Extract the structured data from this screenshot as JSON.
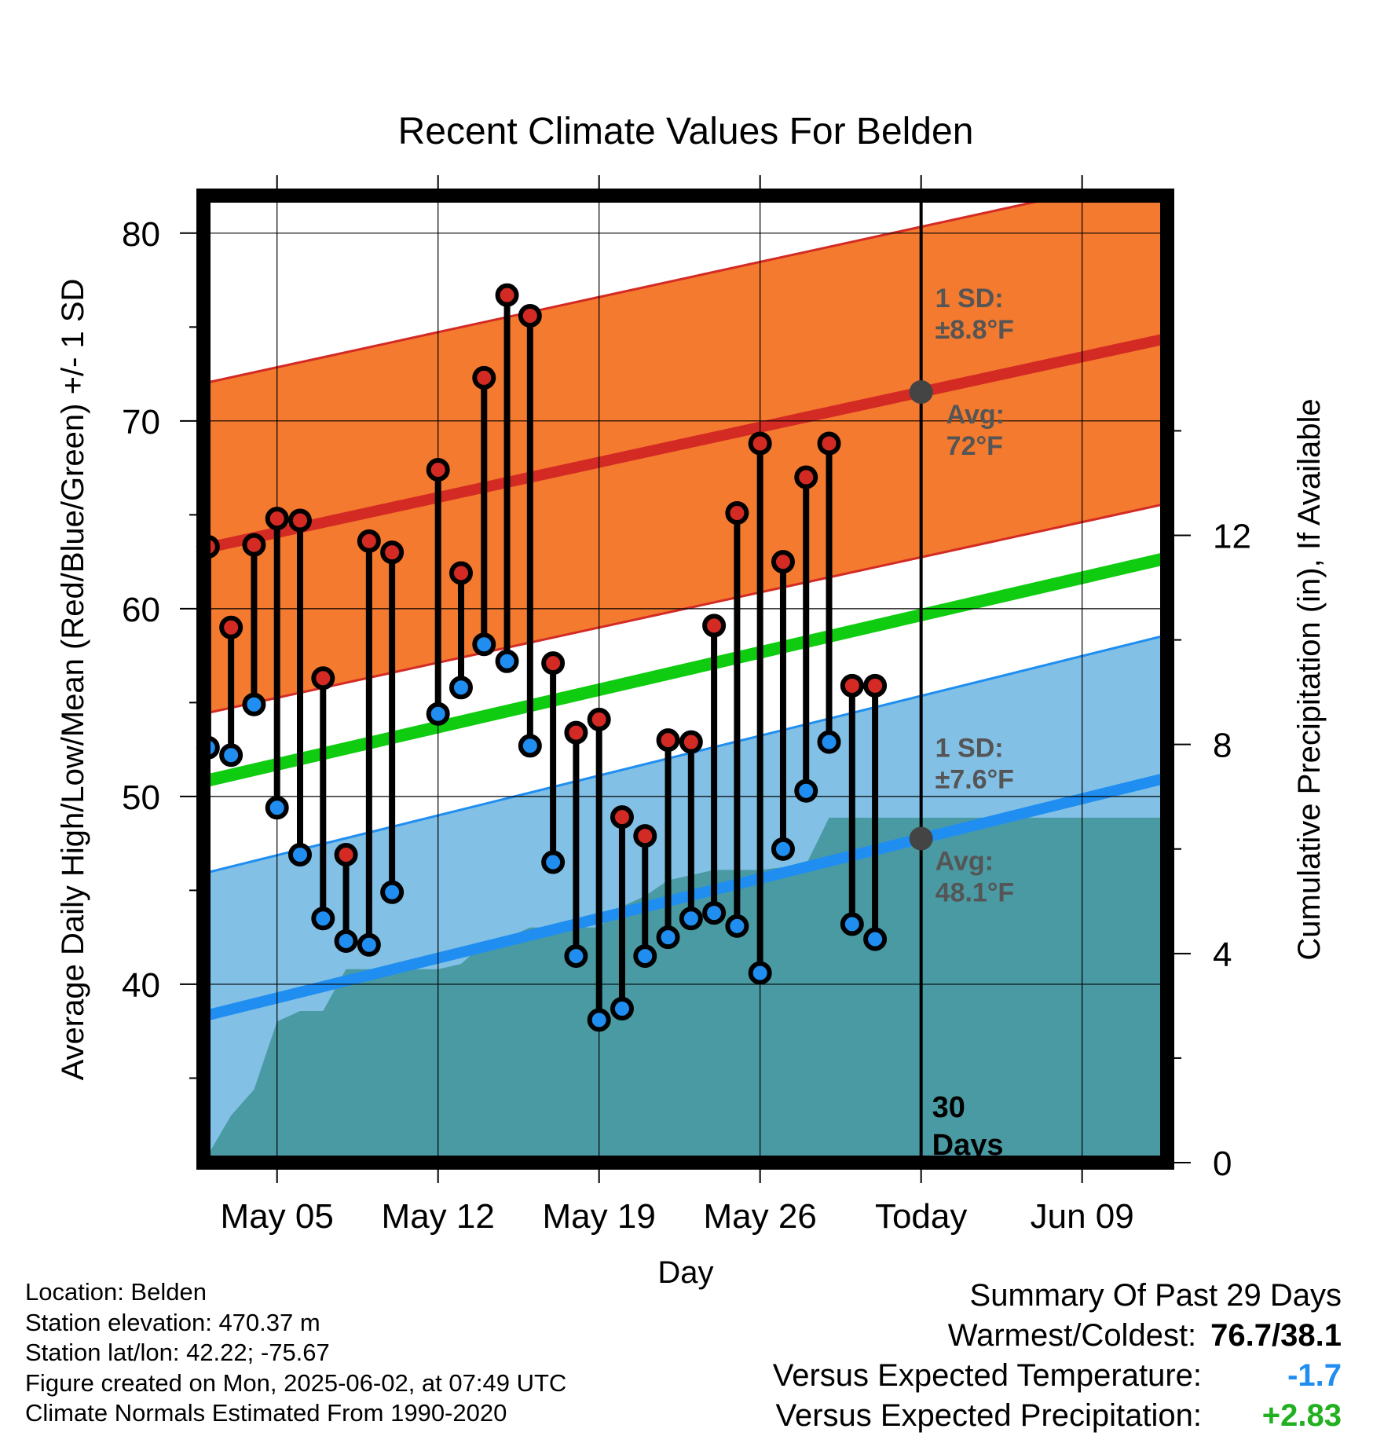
{
  "chart_data": {
    "type": "line",
    "title": "Recent Climate Values For Belden",
    "xlabel": "Day",
    "ylabel": "Average Daily High/Low/Mean (Red/Blue/Green) +/- 1 SD",
    "y2label": "Cumulative Precipitation (in), If Available",
    "x_tick_labels": [
      "May 05",
      "May 12",
      "May 19",
      "May 26",
      "Today",
      "Jun 09"
    ],
    "x_tick_days": [
      5,
      12,
      19,
      26,
      33,
      40
    ],
    "xlim": [
      1.8,
      43.7
    ],
    "ylim": [
      30.5,
      82
    ],
    "y_ticks": [
      40,
      50,
      60,
      70,
      80
    ],
    "y2lim": [
      0,
      18.5
    ],
    "y2_ticks": [
      0,
      4,
      8,
      12
    ],
    "grid": true,
    "today_day": 33,
    "days": [
      2,
      3,
      4,
      5,
      6,
      7,
      8,
      9,
      10,
      11,
      13,
      14,
      15,
      16,
      17,
      18,
      19,
      20,
      21,
      22,
      23,
      24,
      25,
      26,
      27,
      28,
      29,
      30,
      31,
      32
    ],
    "high_temps": [
      63.3,
      59.0,
      63.4,
      64.8,
      64.7,
      56.3,
      46.9,
      63.6,
      63.0,
      67.4,
      61.9,
      72.3,
      76.7,
      75.6,
      57.1,
      53.4,
      54.1,
      48.9,
      47.9,
      53.0,
      52.9,
      59.1,
      65.1,
      68.8,
      62.5,
      67.0,
      68.8,
      55.9,
      55.9
    ],
    "high_days": [
      2,
      3,
      4,
      5,
      6,
      7,
      8,
      9,
      10,
      12,
      13,
      14,
      15,
      16,
      17,
      18,
      19,
      20,
      21,
      22,
      23,
      24,
      25,
      26,
      27,
      28,
      29,
      30,
      31
    ],
    "low_temps": [
      52.6,
      52.2,
      54.9,
      49.4,
      46.9,
      43.5,
      42.3,
      42.1,
      44.9,
      54.4,
      55.8,
      58.1,
      57.2,
      52.7,
      46.5,
      41.5,
      38.1,
      38.7,
      41.5,
      42.5,
      43.5,
      43.8,
      43.1,
      40.6,
      47.2,
      50.3,
      52.9,
      43.2,
      42.4
    ],
    "normal_high": {
      "start": 63.2,
      "end": 74.4,
      "sd": 8.8
    },
    "normal_low": {
      "start": 38.3,
      "end": 51.0,
      "sd": 7.6
    },
    "normal_mean": {
      "start": 50.8,
      "end": 62.7
    },
    "precip_days": [
      1.8,
      3,
      4,
      5,
      6,
      7,
      8,
      9,
      10,
      11,
      12,
      13,
      14,
      15,
      16,
      17,
      18,
      19,
      20,
      21,
      22,
      23,
      24,
      25,
      26,
      27,
      28,
      29,
      30,
      31,
      32,
      33,
      43.7
    ],
    "precip_cumulative": [
      0,
      0.9,
      1.4,
      2.7,
      2.9,
      2.9,
      3.7,
      3.7,
      3.7,
      3.7,
      3.7,
      3.8,
      4.2,
      4.3,
      4.5,
      4.5,
      4.5,
      4.5,
      4.9,
      5.1,
      5.4,
      5.5,
      5.6,
      5.6,
      5.6,
      5.65,
      5.7,
      6.6,
      6.6,
      6.6,
      6.6,
      6.6,
      6.6
    ],
    "annotations": {
      "high_sd": [
        "1 SD:",
        "±8.8°F"
      ],
      "high_avg": [
        "Avg:",
        "72°F"
      ],
      "low_sd": [
        "1 SD:",
        "±7.6°F"
      ],
      "low_avg": [
        "Avg:",
        "48.1°F"
      ],
      "days": [
        "30",
        "Days"
      ]
    },
    "colors": {
      "high_band": "#f47a2f",
      "high_line": "#d42a24",
      "low_band": "#82c0e6",
      "low_line": "#1f8ef0",
      "mean_line": "#10cc10",
      "precip": "#4a9aa4",
      "avg_marker": "#444444"
    }
  },
  "footer": {
    "location": "Location: Belden",
    "elevation": "Station elevation: 470.37 m",
    "latlon": "Station lat/lon: 42.22; -75.67",
    "created": "Figure created on Mon, 2025-06-02, at 07:49 UTC",
    "normals": "Climate Normals Estimated From 1990-2020"
  },
  "summary": {
    "heading": "Summary Of Past 29 Days",
    "warm_cold_label": "Warmest/Coldest:",
    "warm_cold_value": "76.7/38.1",
    "temp_label": "Versus Expected Temperature:",
    "temp_value": "-1.7",
    "temp_color": "#1f8ef0",
    "precip_label": "Versus Expected Precipitation:",
    "precip_value": "+2.83",
    "precip_color": "#20b020"
  }
}
